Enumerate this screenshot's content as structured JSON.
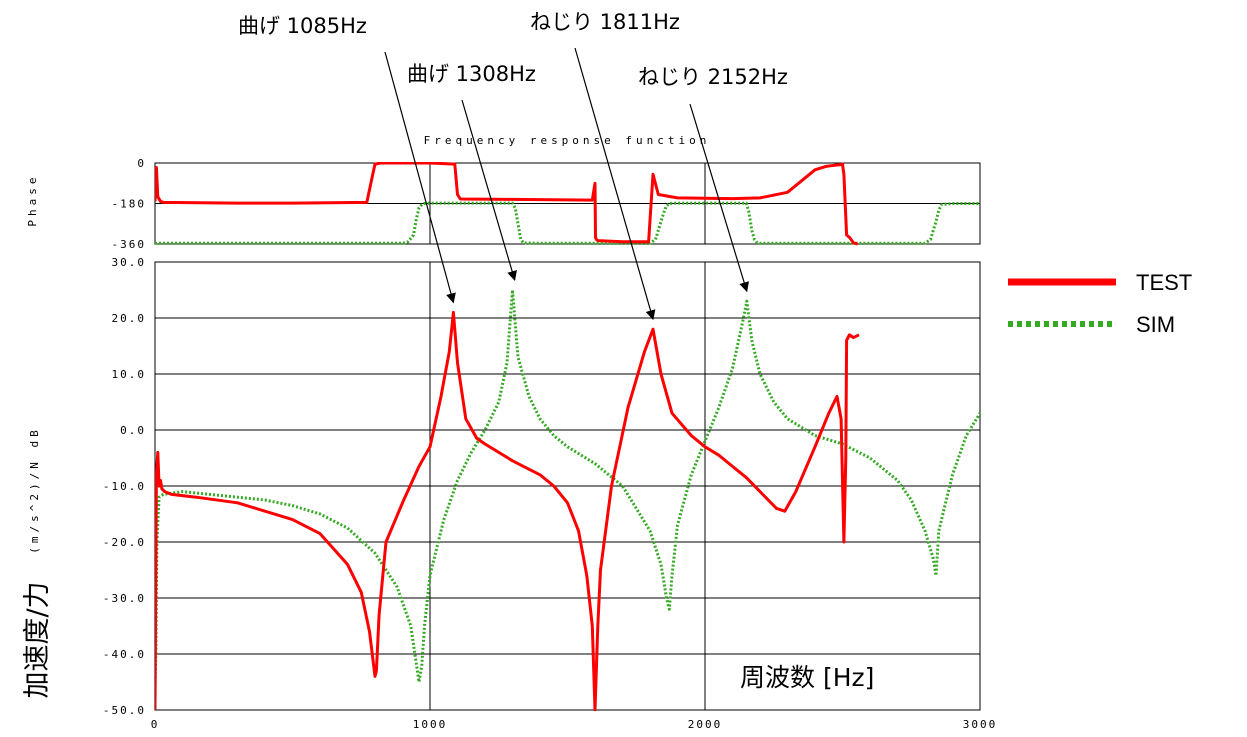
{
  "chart_data": {
    "type": "line",
    "title": "Frequency response function",
    "xlabel": "周波数 [Hz]",
    "ylabel_units": "(m/s^2)/N dB",
    "ylabel_main": "加速度/力",
    "phase_label": "Phase",
    "x_ticks": [
      "0",
      "1000",
      "2000",
      "3000"
    ],
    "xlim": [
      0,
      3000
    ],
    "magnitude": {
      "ylim": [
        -50,
        30
      ],
      "y_ticks": [
        "30.0",
        "20.0",
        "10.0",
        "0.0",
        "-10.0",
        "-20.0",
        "-30.0",
        "-40.0",
        "-50.0"
      ],
      "series": [
        {
          "name": "TEST",
          "color": "#ff0000",
          "style": "solid",
          "x": [
            0,
            5,
            10,
            15,
            20,
            25,
            35,
            60,
            150,
            300,
            500,
            600,
            700,
            750,
            780,
            800,
            805,
            815,
            840,
            900,
            960,
            1000,
            1040,
            1070,
            1085,
            1100,
            1130,
            1170,
            1200,
            1250,
            1300,
            1400,
            1450,
            1500,
            1540,
            1570,
            1590,
            1600,
            1610,
            1620,
            1660,
            1720,
            1780,
            1811,
            1840,
            1880,
            1950,
            2000,
            2050,
            2100,
            2150,
            2200,
            2260,
            2290,
            2330,
            2400,
            2450,
            2480,
            2495,
            2505,
            2512,
            2515,
            2525,
            2540,
            2560
          ],
          "y": [
            -50,
            -8,
            -4,
            -10,
            -9,
            -10.5,
            -11,
            -11.5,
            -12,
            -13,
            -16,
            -18.5,
            -24,
            -29,
            -36,
            -44,
            -43,
            -33,
            -20,
            -13,
            -6.5,
            -3,
            6,
            14,
            21,
            12,
            2,
            -1.5,
            -2.5,
            -4,
            -5.5,
            -8,
            -10,
            -13,
            -18,
            -26,
            -35,
            -50,
            -35,
            -25,
            -10,
            4,
            14,
            18,
            10,
            3,
            -1,
            -3,
            -4.5,
            -6.5,
            -8.5,
            -11,
            -14,
            -14.5,
            -11,
            -3,
            3,
            6,
            2,
            -20,
            -5,
            16,
            17,
            16.5,
            17
          ]
        },
        {
          "name": "SIM",
          "color": "#33aa22",
          "style": "dotted",
          "x": [
            0,
            3,
            7,
            15,
            30,
            100,
            200,
            300,
            400,
            500,
            600,
            700,
            800,
            880,
            930,
            960,
            970,
            980,
            1000,
            1050,
            1100,
            1150,
            1200,
            1250,
            1280,
            1300,
            1320,
            1360,
            1400,
            1450,
            1500,
            1600,
            1700,
            1750,
            1800,
            1840,
            1860,
            1870,
            1880,
            1900,
            1950,
            2000,
            2050,
            2100,
            2140,
            2152,
            2170,
            2200,
            2250,
            2300,
            2400,
            2500,
            2600,
            2700,
            2750,
            2800,
            2830,
            2840,
            2850,
            2900,
            2950,
            3000
          ],
          "y": [
            -45,
            -40,
            -20,
            -12,
            -11.5,
            -11,
            -11.5,
            -12,
            -12.5,
            -13.5,
            -15,
            -17.5,
            -22,
            -28,
            -35,
            -45,
            -42,
            -35,
            -26,
            -16,
            -9,
            -4,
            0,
            5,
            12,
            25,
            13,
            6,
            2,
            -1,
            -3,
            -6,
            -10,
            -14,
            -18,
            -24,
            -30,
            -32,
            -26,
            -17,
            -8,
            -2,
            4,
            11,
            20,
            23,
            16,
            10,
            5,
            2,
            -1,
            -2.5,
            -5,
            -9,
            -12.5,
            -18,
            -23,
            -26,
            -18,
            -8,
            -1,
            3
          ]
        }
      ]
    },
    "phase": {
      "ylim": [
        -360,
        0
      ],
      "y_ticks": [
        "0",
        "-180",
        "-360"
      ],
      "series": [
        {
          "name": "TEST",
          "color": "#ff0000",
          "style": "solid",
          "x": [
            0,
            5,
            10,
            20,
            30,
            300,
            500,
            770,
            790,
            800,
            820,
            1000,
            1090,
            1100,
            1110,
            1300,
            1590,
            1600,
            1602,
            1605,
            1610,
            1700,
            1795,
            1811,
            1830,
            1900,
            2000,
            2100,
            2200,
            2300,
            2400,
            2440,
            2470,
            2490,
            2500,
            2505,
            2515,
            2525,
            2540,
            2555
          ],
          "y": [
            -170,
            -20,
            -150,
            -170,
            -175,
            -178,
            -178,
            -175,
            -60,
            -5,
            0,
            0,
            -5,
            -140,
            -160,
            -162,
            -165,
            -90,
            -330,
            -340,
            -345,
            -350,
            -350,
            -50,
            -140,
            -155,
            -157,
            -158,
            -155,
            -130,
            -30,
            -15,
            -10,
            -8,
            -5,
            -50,
            -320,
            -330,
            -355,
            -360
          ]
        },
        {
          "name": "SIM",
          "color": "#33aa22",
          "style": "dotted",
          "x": [
            0,
            500,
            900,
            920,
            940,
            950,
            960,
            970,
            980,
            1000,
            1200,
            1300,
            1310,
            1320,
            1330,
            1340,
            1400,
            1800,
            1820,
            1840,
            1850,
            1860,
            1870,
            1900,
            2150,
            2160,
            2170,
            2180,
            2190,
            2200,
            2700,
            2800,
            2820,
            2840,
            2850,
            2860,
            2900,
            3000
          ],
          "y": [
            -357,
            -357,
            -357,
            -350,
            -320,
            -250,
            -200,
            -185,
            -180,
            -178,
            -178,
            -178,
            -200,
            -270,
            -340,
            -355,
            -357,
            -357,
            -340,
            -260,
            -220,
            -190,
            -180,
            -178,
            -178,
            -220,
            -300,
            -340,
            -355,
            -357,
            -357,
            -357,
            -340,
            -260,
            -210,
            -185,
            -180,
            -180
          ]
        }
      ]
    },
    "annotations": [
      {
        "text": "曲げ 1085Hz",
        "target_x": 1085,
        "target_y": 21
      },
      {
        "text": "曲げ 1308Hz",
        "target_x": 1308,
        "target_y": 25
      },
      {
        "text": "ねじり 1811Hz",
        "target_x": 1811,
        "target_y": 18
      },
      {
        "text": "ねじり 2152Hz",
        "target_x": 2152,
        "target_y": 23
      }
    ],
    "legend": {
      "position": "right",
      "items": [
        "TEST",
        "SIM"
      ]
    }
  }
}
